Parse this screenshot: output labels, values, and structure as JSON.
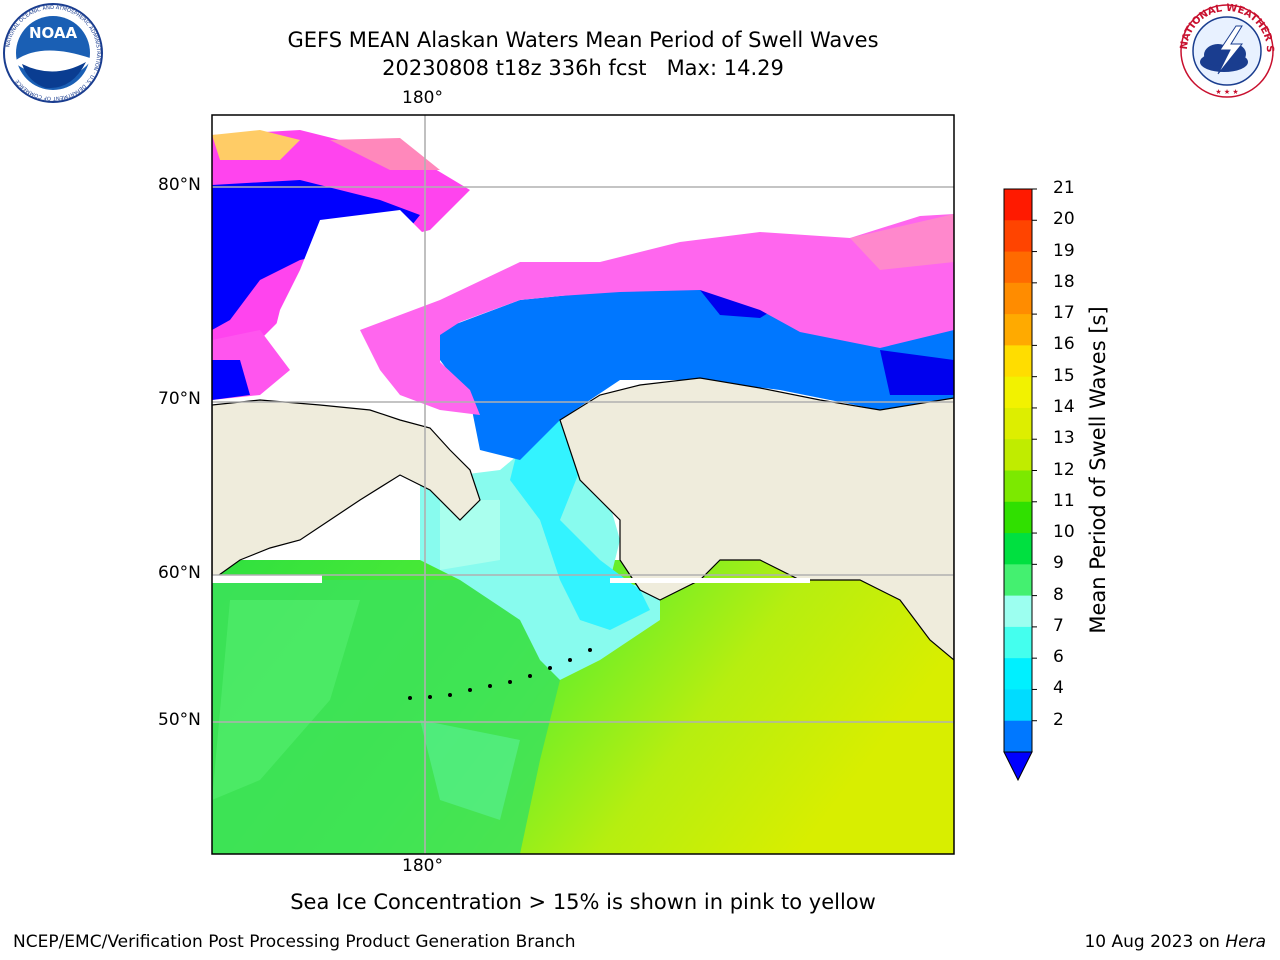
{
  "header": {
    "title_line1": "GEFS MEAN Alaskan Waters Mean Period of Swell Waves",
    "title_line2": "20230808 t18z 336h fcst   Max: 14.29"
  },
  "logos": {
    "left_name": "NOAA",
    "left_ring_text": "NATIONAL OCEANIC AND ATMOSPHERIC ADMINISTRATION · U.S. DEPARTMENT OF COMMERCE",
    "right_ring_text": "NATIONAL WEATHER SERVICE"
  },
  "map": {
    "top_lon_label": "180°",
    "bottom_lon_label": "180°",
    "lat_labels": [
      "80°N",
      "70°N",
      "60°N",
      "50°N"
    ]
  },
  "colorbar": {
    "label": "Mean Period of Swell Waves [s]",
    "ticks": [
      "21",
      "20",
      "19",
      "18",
      "17",
      "16",
      "15",
      "14",
      "13",
      "12",
      "11",
      "10",
      "9",
      "8",
      "7",
      "6",
      "4",
      "2"
    ],
    "colors": [
      "#ff1a00",
      "#ff4400",
      "#ff6a00",
      "#ff8c00",
      "#ffaa00",
      "#ffdd00",
      "#f2f200",
      "#ddee00",
      "#c0ec00",
      "#7ce900",
      "#30e000",
      "#00e040",
      "#44f070",
      "#9cfff0",
      "#44ffee",
      "#00f0ff",
      "#00dcff",
      "#0078ff",
      "#0000ff"
    ]
  },
  "footer": {
    "note": "Sea Ice Concentration > 15% is shown in pink to yellow",
    "left": "NCEP/EMC/Verification Post Processing Product Generation Branch",
    "right_date": "10 Aug 2023 on ",
    "right_host": "Hera"
  }
}
